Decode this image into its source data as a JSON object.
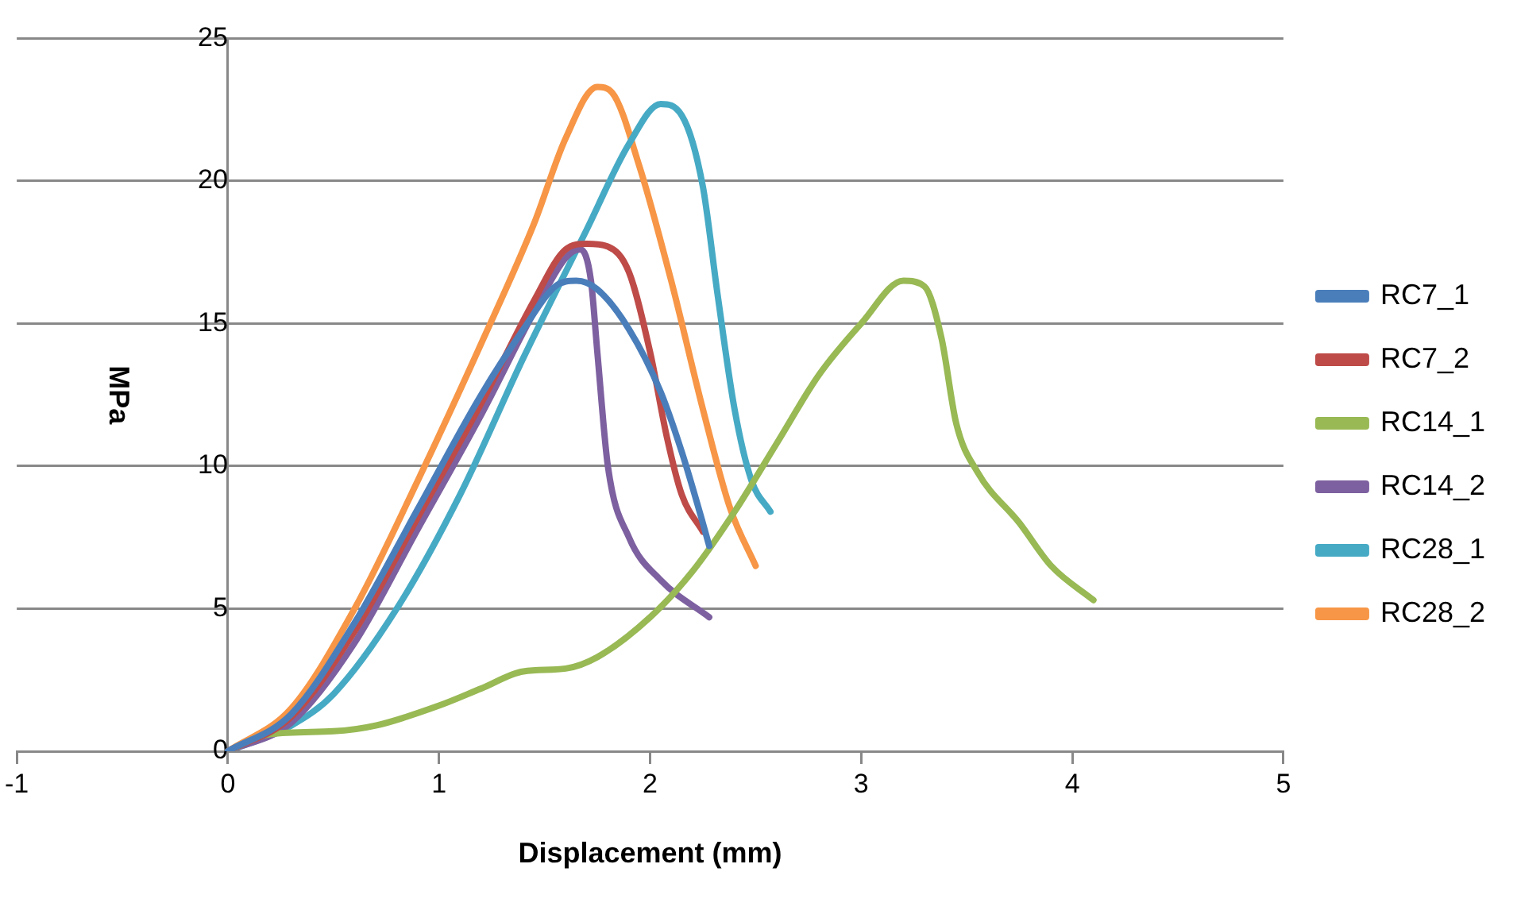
{
  "chart_data": {
    "type": "line",
    "xlabel": "Displacement (mm)",
    "ylabel": "MPa",
    "xlim": [
      -1,
      5
    ],
    "xticks": [
      -1,
      0,
      1,
      2,
      3,
      4,
      5
    ],
    "ylim": [
      0,
      25
    ],
    "yticks": [
      0,
      5,
      10,
      15,
      20,
      25
    ],
    "grid": "y",
    "legend": "right",
    "marker": "none",
    "line_style": "solid",
    "series": [
      {
        "name": "RC7_1",
        "color": "#4a7ebb",
        "x": [
          0,
          0.3,
          0.6,
          0.9,
          1.2,
          1.4,
          1.55,
          1.65,
          1.75,
          1.9,
          2.05,
          2.15,
          2.25,
          2.28
        ],
        "values": [
          0,
          1.3,
          4.5,
          8.5,
          12.5,
          14.8,
          16.3,
          16.5,
          16.2,
          14.8,
          12.6,
          10.5,
          8,
          7.2
        ]
      },
      {
        "name": "RC7_2",
        "color": "#be4b48",
        "x": [
          0,
          0.3,
          0.6,
          0.9,
          1.2,
          1.45,
          1.6,
          1.7,
          1.8,
          1.9,
          2.0,
          2.08,
          2.15,
          2.25
        ],
        "values": [
          0,
          1.2,
          4.2,
          8.2,
          12.2,
          15.8,
          17.6,
          17.8,
          17.7,
          16.8,
          14,
          11,
          9,
          7.7
        ]
      },
      {
        "name": "RC14_1",
        "color": "#98b954",
        "x": [
          0,
          0.2,
          0.5,
          0.7,
          1.0,
          1.2,
          1.4,
          1.6,
          1.75,
          2.0,
          2.2,
          2.4,
          2.6,
          2.8,
          3.0,
          3.2,
          3.3,
          3.38,
          3.45,
          3.55,
          3.75,
          3.9,
          4.1
        ],
        "values": [
          0,
          0.6,
          0.7,
          0.9,
          1.6,
          2.2,
          2.8,
          2.9,
          3.3,
          4.7,
          6.3,
          8.4,
          10.8,
          13.2,
          15,
          16.5,
          16.3,
          14.5,
          11.5,
          9.8,
          8,
          6.5,
          5.3
        ]
      },
      {
        "name": "RC14_2",
        "color": "#7d60a0",
        "x": [
          0,
          0.3,
          0.6,
          0.9,
          1.2,
          1.45,
          1.6,
          1.67,
          1.72,
          1.75,
          1.8,
          1.9,
          2.05,
          2.28
        ],
        "values": [
          0,
          1.0,
          3.8,
          7.8,
          11.8,
          15.4,
          17.3,
          17.6,
          16.5,
          14,
          10,
          7.5,
          6,
          4.7
        ]
      },
      {
        "name": "RC28_1",
        "color": "#46aac5",
        "x": [
          0,
          0.3,
          0.5,
          0.8,
          1.1,
          1.4,
          1.7,
          1.9,
          2.05,
          2.15,
          2.25,
          2.32,
          2.4,
          2.48,
          2.57
        ],
        "values": [
          0,
          0.9,
          2,
          5,
          9,
          13.8,
          18.3,
          21.3,
          22.7,
          22.3,
          19.8,
          16,
          12,
          9.5,
          8.4
        ]
      },
      {
        "name": "RC28_2",
        "color": "#f79646",
        "x": [
          0,
          0.3,
          0.6,
          0.9,
          1.2,
          1.45,
          1.6,
          1.75,
          1.82,
          1.95,
          2.1,
          2.25,
          2.38,
          2.5
        ],
        "values": [
          0,
          1.5,
          5,
          9.5,
          14.3,
          18.5,
          21.5,
          23.3,
          23.1,
          20.5,
          16.5,
          12,
          8.5,
          6.5
        ]
      }
    ]
  }
}
